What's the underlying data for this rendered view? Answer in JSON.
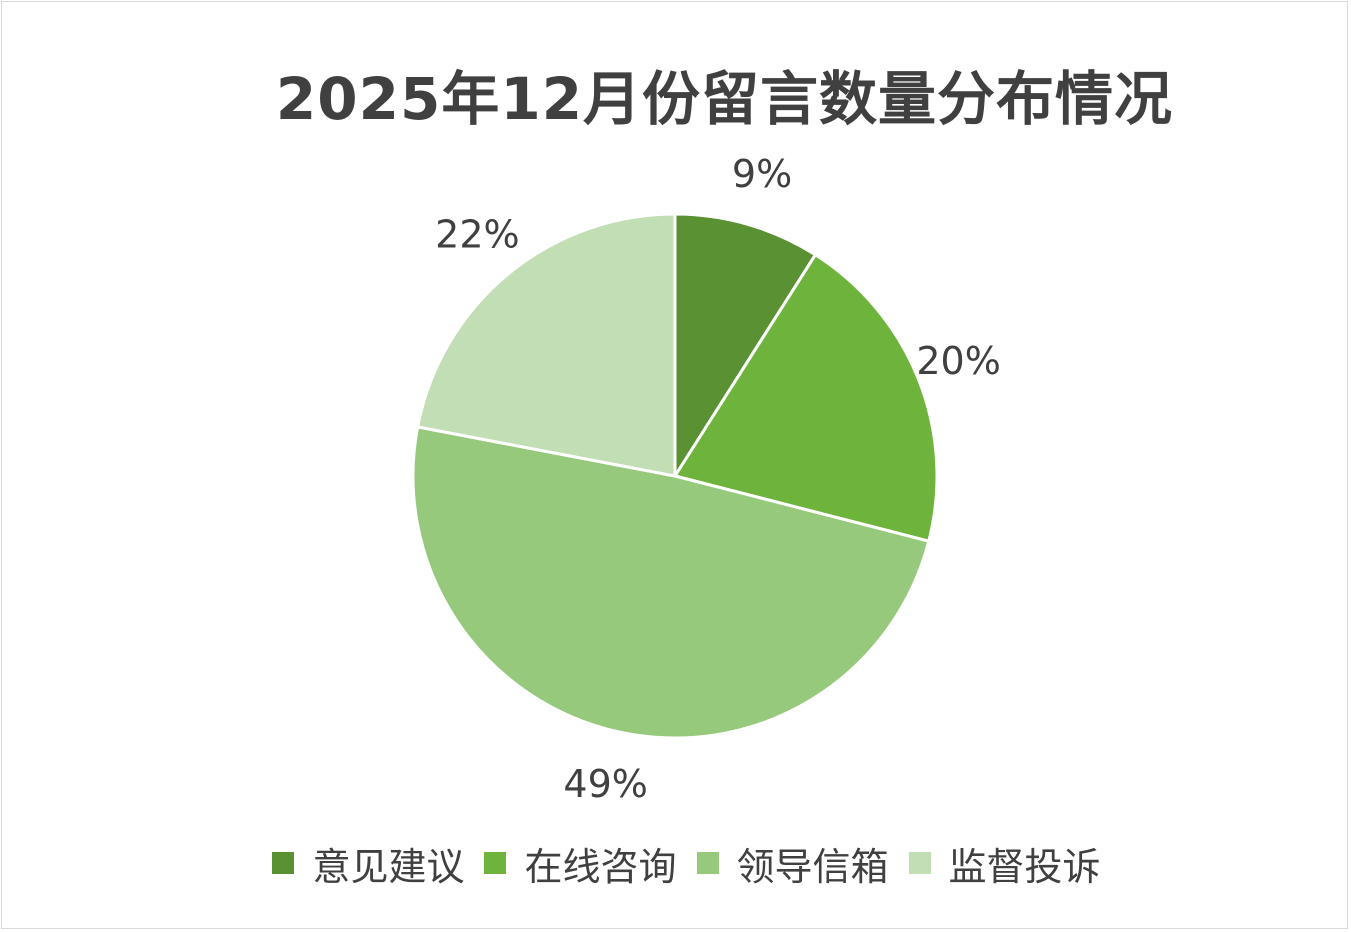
{
  "chart_data": {
    "type": "pie",
    "title": "2025年12月份留言数量分布情况",
    "categories": [
      "意见建议",
      "在线咨询",
      "领导信箱",
      "监督投诉"
    ],
    "values": [
      9,
      20,
      49,
      22
    ],
    "labels": [
      "9%",
      "20%",
      "49%",
      "22%"
    ],
    "colors": [
      "#5a9132",
      "#6db33c",
      "#96c97b",
      "#c2deb4"
    ],
    "legend_position": "bottom",
    "start_angle_deg": 0,
    "direction": "clockwise"
  }
}
